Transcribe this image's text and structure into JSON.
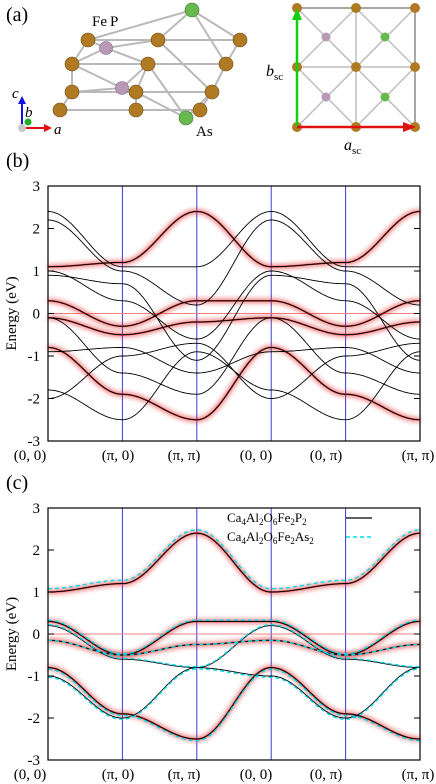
{
  "panel_a": {
    "label": "(a)",
    "atoms": {
      "fe": "Fe",
      "p": "P",
      "as": "As"
    },
    "axes": {
      "c": "c",
      "b": "b",
      "a": "a"
    },
    "cell": {
      "b_sc": "b",
      "b_sub": "sc",
      "a_sc": "a",
      "a_sub": "sc"
    },
    "colors": {
      "fe": "#b07a22",
      "p": "#b79ab7",
      "as": "#66b84f",
      "a_arrow": "#e01010",
      "b_arrow": "#10d010"
    }
  },
  "panel_b": {
    "label": "(b)",
    "ylabel": "Energy (eV)",
    "yticks": [
      "3",
      "2",
      "1",
      "0",
      "-1",
      "-2",
      "-3"
    ],
    "xticks": [
      "(0, 0)",
      "(π, 0)",
      "(π, π)",
      "(0, 0)",
      "(0, π)",
      "(π, π)"
    ]
  },
  "panel_c": {
    "label": "(c)",
    "ylabel": "Energy (eV)",
    "yticks": [
      "3",
      "2",
      "1",
      "0",
      "-1",
      "-2",
      "-3"
    ],
    "xticks": [
      "(0, 0)",
      "(π, 0)",
      "(π, π)",
      "(0, 0)",
      "(0, π)",
      "(π, π)"
    ],
    "legend": [
      {
        "base": "Ca4Al2O6Fe2P2",
        "sample": "solid",
        "color": "#000000"
      },
      {
        "base": "Ca4Al2O6Fe2As2",
        "sample": "dashed",
        "color": "#00d8e8"
      }
    ]
  },
  "chart_data": [
    {
      "type": "line",
      "ylabel": "Energy (eV)",
      "ylim": [
        -3,
        3
      ],
      "x_labels": [
        "(0, 0)",
        "(π, 0)",
        "(π, π)",
        "(0, 0)",
        "(0, π)",
        "(π, π)"
      ],
      "x": [
        0,
        1,
        2,
        3,
        4,
        5
      ],
      "grid": false,
      "series": [
        {
          "values": [
            0.3,
            -0.3,
            0.3,
            0.3,
            -0.3,
            0.3
          ]
        },
        {
          "values": [
            1.1,
            1.2,
            2.4,
            1.1,
            1.2,
            2.4
          ]
        },
        {
          "values": [
            -0.8,
            -1.9,
            -2.5,
            -0.8,
            -1.9,
            -2.5
          ]
        },
        {
          "values": [
            2.4,
            1.1,
            1.1,
            2.4,
            1.1,
            1.1
          ]
        },
        {
          "values": [
            -0.1,
            -1.4,
            -1.9,
            -0.1,
            -1.4,
            -1.9
          ]
        }
      ]
    },
    {
      "type": "line",
      "ylabel": "Energy (eV)",
      "ylim": [
        -3,
        3
      ],
      "x_labels": [
        "(0, 0)",
        "(π, 0)",
        "(π, π)",
        "(0, 0)",
        "(0, π)",
        "(π, π)"
      ],
      "x": [
        0,
        1,
        2,
        3,
        4,
        5
      ],
      "grid": false,
      "series": [
        {
          "name": "Ca4Al2O6Fe2P2",
          "values": [
            1.0,
            1.2,
            2.4,
            1.0,
            1.2,
            2.4
          ]
        },
        {
          "name": "Ca4Al2O6Fe2As2",
          "values": [
            1.0,
            1.2,
            2.55,
            1.0,
            1.25,
            2.55
          ]
        }
      ]
    }
  ]
}
